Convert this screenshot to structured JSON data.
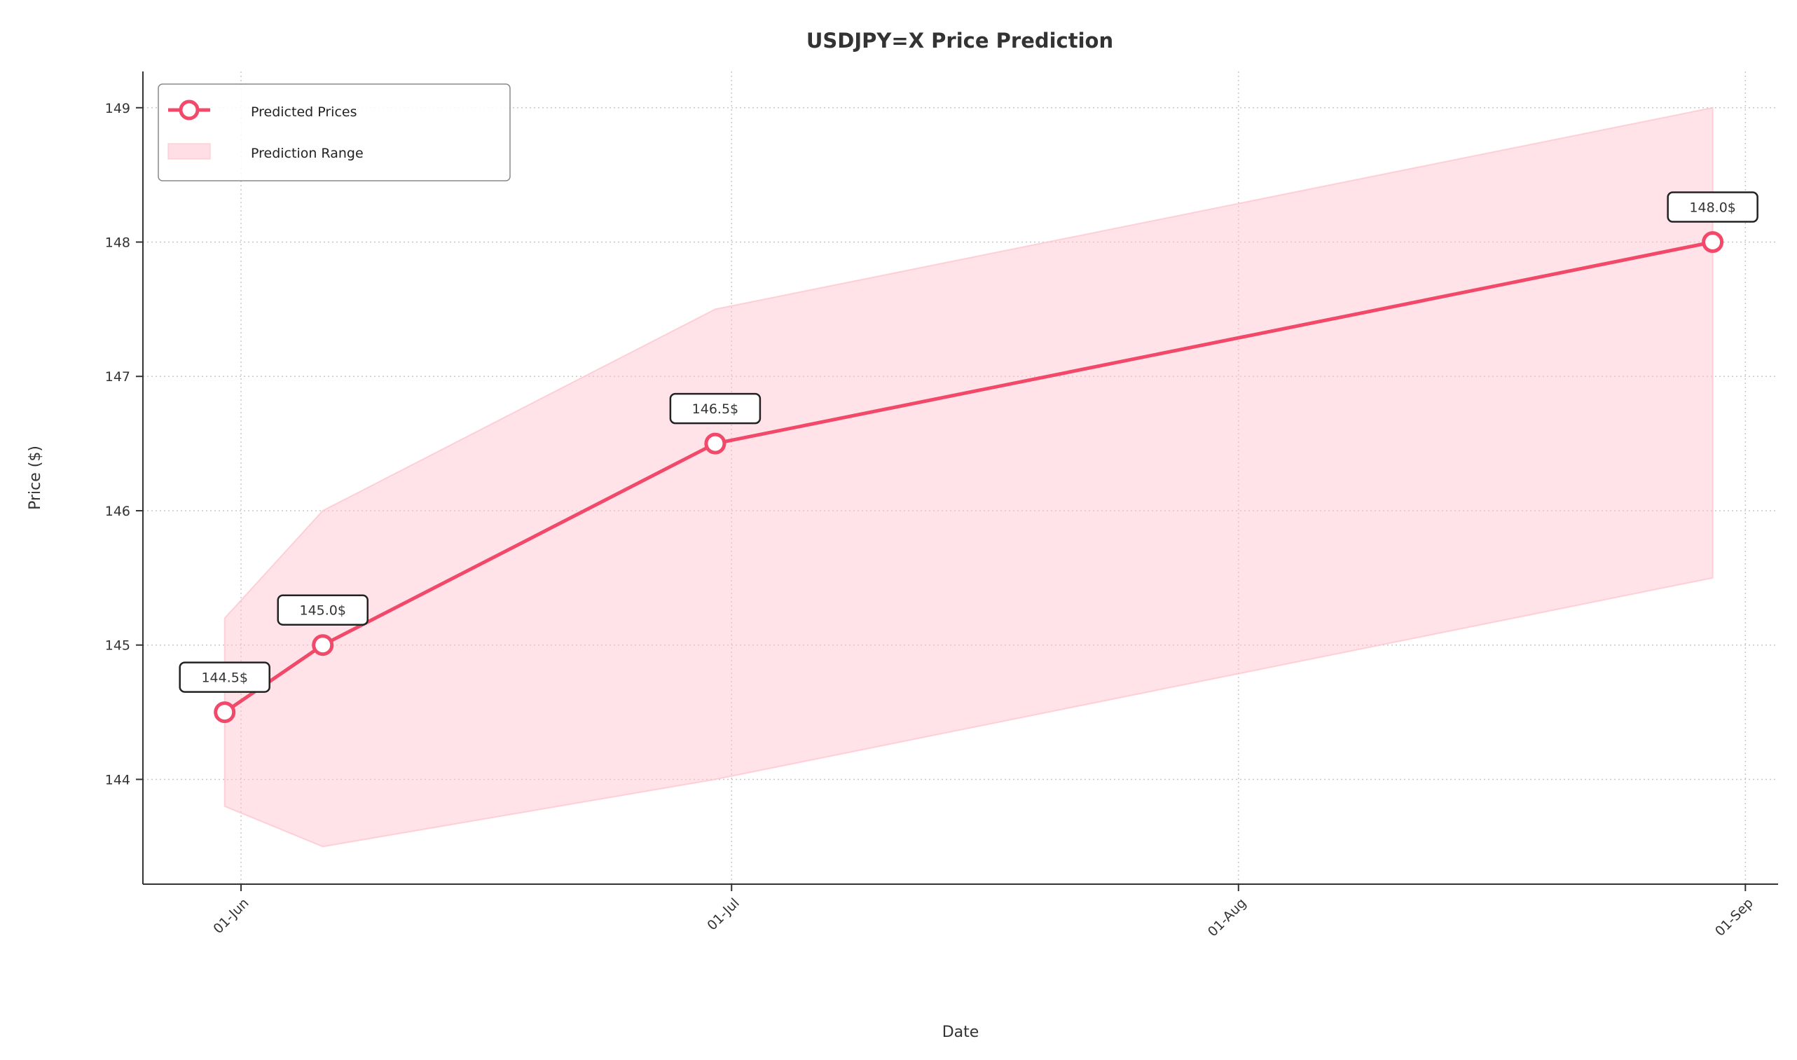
{
  "chart_data": {
    "type": "line",
    "title": "USDJPY=X Price Prediction",
    "xlabel": "Date",
    "ylabel": "Price ($)",
    "x_ticks": [
      {
        "date": "2024-06-01",
        "label": "01-Jun"
      },
      {
        "date": "2024-07-01",
        "label": "01-Jul"
      },
      {
        "date": "2024-08-01",
        "label": "01-Aug"
      },
      {
        "date": "2024-09-01",
        "label": "01-Sep"
      }
    ],
    "y_ticks": [
      144,
      145,
      146,
      147,
      148,
      149
    ],
    "xlim": [
      "2024-05-26",
      "2024-09-03"
    ],
    "ylim": [
      143.22,
      149.27
    ],
    "grid": true,
    "legend_position": "top-left",
    "series": [
      {
        "name": "Predicted Prices",
        "color": "#f2496a",
        "points": [
          {
            "x": "2024-05-31",
            "y": 144.5,
            "label": "144.5$"
          },
          {
            "x": "2024-06-06",
            "y": 145.0,
            "label": "145.0$"
          },
          {
            "x": "2024-06-30",
            "y": 146.5,
            "label": "146.5$"
          },
          {
            "x": "2024-08-30",
            "y": 148.0,
            "label": "148.0$"
          }
        ]
      }
    ],
    "range": {
      "name": "Prediction Range",
      "color": "#ffc0cb",
      "points": [
        {
          "x": "2024-05-31",
          "low": 143.8,
          "high": 145.2
        },
        {
          "x": "2024-06-06",
          "low": 143.5,
          "high": 146.0
        },
        {
          "x": "2024-06-30",
          "low": 144.0,
          "high": 147.5
        },
        {
          "x": "2024-08-30",
          "low": 145.5,
          "high": 149.0
        }
      ]
    }
  }
}
